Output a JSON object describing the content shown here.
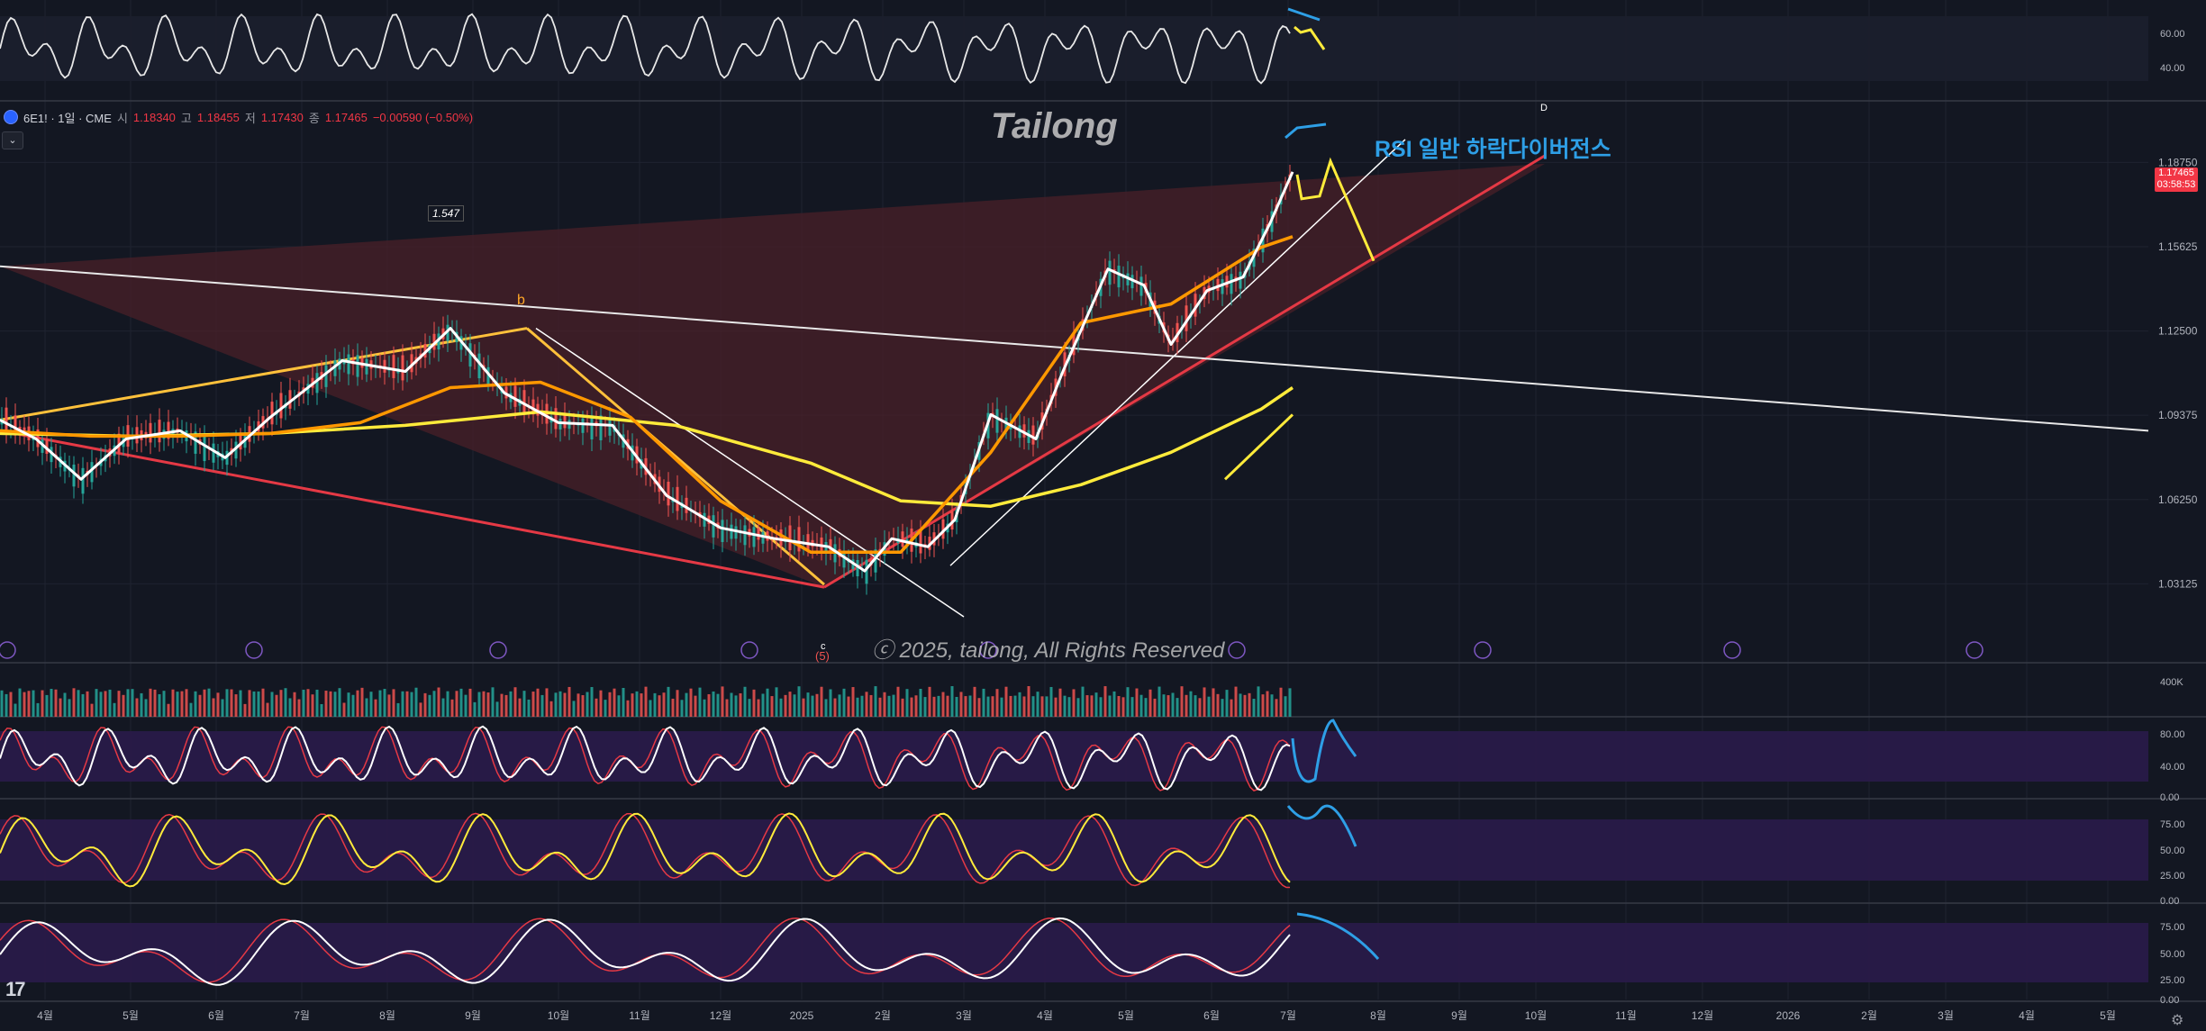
{
  "header": {
    "symbol": "6E1! · 1일 · CME",
    "open_label": "시",
    "open": "1.18340",
    "high_label": "고",
    "high": "1.18455",
    "low_label": "저",
    "low": "1.17430",
    "close_label": "종",
    "close": "1.17465",
    "change": "−0.00590 (−0.50%)",
    "collapse_icon": "chevron-down-icon"
  },
  "watermark": "Tailong",
  "copyright": "ⓒ 2025, tailong, All Rights Reserved",
  "annotation": "RSI 일반 하락다이버전스",
  "last_price": {
    "value": "1.17465",
    "countdown": "03:58:53",
    "color": "#f23645"
  },
  "fib_label": "1.547",
  "wave_labels": {
    "b": "b",
    "c": "c",
    "five": "(5)",
    "d": "D"
  },
  "tv_logo": "17",
  "settings_icon": "gear-icon",
  "colors": {
    "background": "#131722",
    "up": "#26a69a",
    "down": "#ef5350",
    "price_line": "#ffffff",
    "ema_fast": "#ff9800",
    "ema_slow": "#ffeb3b",
    "wedge_fill": "#4a2028",
    "trend_red": "#e53945",
    "annotation_blue": "#2e9fe6",
    "annotation_yellow": "#ffeb3b",
    "osc_band": "#2a1b4a"
  },
  "chart_data": [
    {
      "type": "line",
      "panel": "price",
      "yaxis_ticks": [
        "1.18750",
        "1.15625",
        "1.12500",
        "1.09375",
        "1.06250",
        "1.03125"
      ],
      "ylim": [
        1.01,
        1.21
      ],
      "x_ticks": [
        "4월",
        "5월",
        "6월",
        "7월",
        "8월",
        "9월",
        "10월",
        "11월",
        "12월",
        "2025",
        "2월",
        "3월",
        "4월",
        "5월",
        "6월",
        "7월",
        "8월",
        "9월",
        "10월",
        "11월",
        "12월",
        "2026",
        "2월",
        "3월",
        "4월",
        "5월"
      ],
      "x_positions": [
        50,
        145,
        240,
        335,
        430,
        525,
        620,
        710,
        800,
        890,
        980,
        1070,
        1160,
        1250,
        1345,
        1430,
        1530,
        1620,
        1705,
        1805,
        1890,
        1985,
        2075,
        2160,
        2250,
        2340
      ],
      "series": [
        {
          "name": "",
          "x": [
            0,
            40,
            90,
            140,
            200,
            250,
            300,
            380,
            450,
            500,
            560,
            620,
            680,
            740,
            800,
            860,
            920,
            960,
            990,
            1030,
            1060,
            1100,
            1150,
            1180,
            1230,
            1270,
            1300,
            1340,
            1380,
            1410,
            1435
          ],
          "y": [
            1.092,
            1.085,
            1.07,
            1.085,
            1.088,
            1.078,
            1.093,
            1.114,
            1.11,
            1.126,
            1.102,
            1.091,
            1.09,
            1.064,
            1.052,
            1.048,
            1.045,
            1.036,
            1.048,
            1.045,
            1.055,
            1.094,
            1.085,
            1.11,
            1.148,
            1.142,
            1.12,
            1.14,
            1.145,
            1.165,
            1.184
          ]
        },
        {
          "name": "",
          "x": [
            0,
            100,
            200,
            300,
            400,
            500,
            600,
            700,
            800,
            900,
            1000,
            1100,
            1200,
            1300,
            1400,
            1435
          ],
          "y": [
            1.088,
            1.086,
            1.086,
            1.087,
            1.091,
            1.104,
            1.106,
            1.093,
            1.062,
            1.043,
            1.043,
            1.08,
            1.128,
            1.135,
            1.156,
            1.16
          ]
        },
        {
          "name": "",
          "x": [
            0,
            150,
            300,
            450,
            600,
            750,
            900,
            1000,
            1100,
            1200,
            1300,
            1400,
            1435
          ],
          "y": [
            1.087,
            1.086,
            1.087,
            1.09,
            1.095,
            1.09,
            1.076,
            1.062,
            1.06,
            1.068,
            1.08,
            1.096,
            1.104
          ]
        }
      ]
    },
    {
      "type": "bar",
      "panel": "volume",
      "yaxis_ticks": [
        "400K"
      ]
    },
    {
      "type": "line",
      "panel": "rsi_top",
      "yaxis_ticks": [
        "60.00",
        "40.00"
      ],
      "ylim": [
        20,
        80
      ]
    },
    {
      "type": "line",
      "panel": "stoch_rsi",
      "yaxis_ticks": [
        "80.00",
        "40.00",
        "0.00"
      ],
      "ylim": [
        0,
        100
      ]
    },
    {
      "type": "line",
      "panel": "stoch",
      "yaxis_ticks": [
        "75.00",
        "50.00",
        "25.00",
        "0.00"
      ],
      "ylim": [
        0,
        100
      ]
    },
    {
      "type": "line",
      "panel": "macd_like",
      "yaxis_ticks": [
        "75.00",
        "50.00",
        "25.00",
        "0.00"
      ],
      "ylim": [
        0,
        100
      ]
    }
  ]
}
